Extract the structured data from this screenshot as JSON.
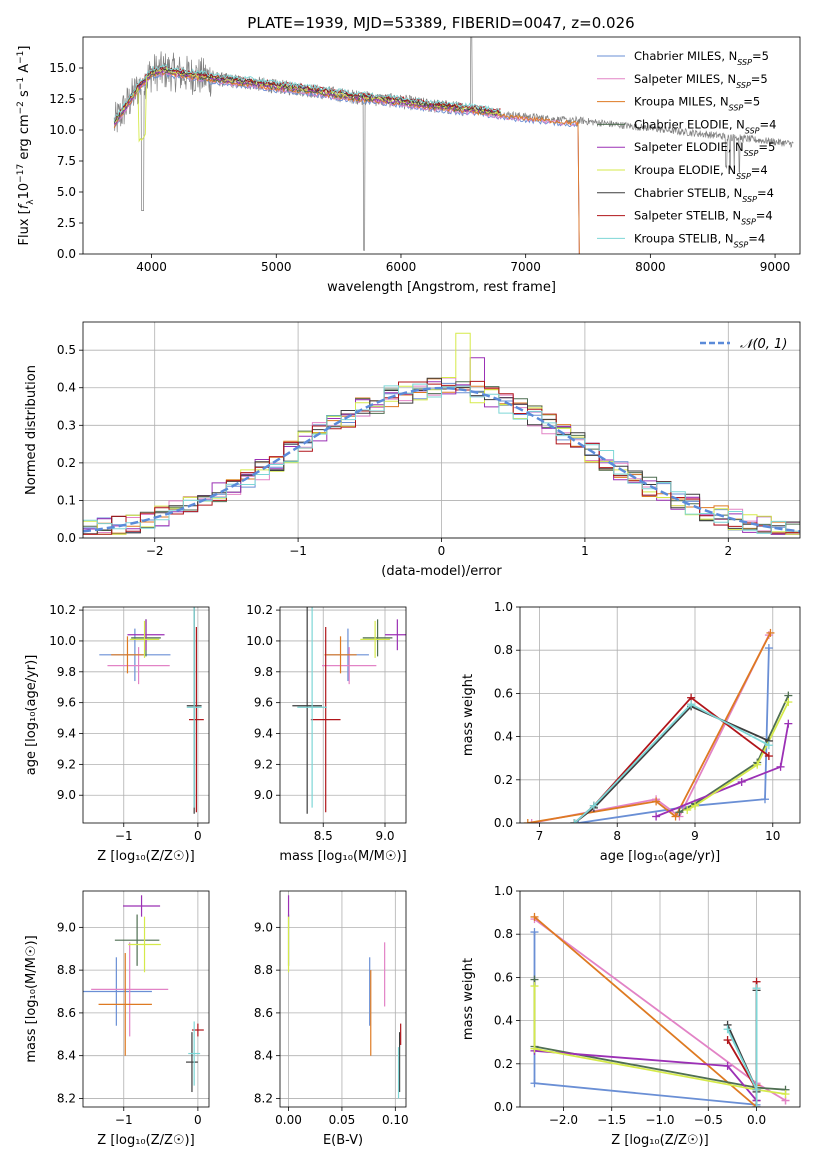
{
  "figure_title": "PLATE=1939, MJD=53389, FIBERID=0047, z=0.026",
  "colors": {
    "Chabrier MILES": "#6a8fd5",
    "Salpeter MILES": "#e283c6",
    "Kroupa MILES": "#de7a22",
    "Chabrier ELODIE": "#4f6f52",
    "Salpeter ELODIE": "#9b30b5",
    "Kroupa ELODIE": "#d5ea4a",
    "Chabrier STELIB": "#3d3d3d",
    "Salpeter STELIB": "#b0151a",
    "Kroupa STELIB": "#7dd6d6",
    "data": "#808080"
  },
  "chart_data": [
    {
      "id": "spectrum",
      "type": "line",
      "title": "PLATE=1939, MJD=53389, FIBERID=0047, z=0.026",
      "xlabel": "wavelength [Angstrom, rest frame]",
      "ylabel_parts": [
        "Flux [",
        "f",
        "λ",
        "10",
        "−17",
        " erg cm",
        "−2",
        " s",
        "−1",
        " A",
        "−1",
        "]"
      ],
      "xlim": [
        3450,
        9200
      ],
      "ylim": [
        0,
        17.5
      ],
      "xticks": [
        4000,
        5000,
        6000,
        7000,
        8000,
        9000
      ],
      "yticks": [
        0.0,
        2.5,
        5.0,
        7.5,
        10.0,
        12.5,
        15.0
      ],
      "ytick_labels": [
        "0.0",
        "2.5",
        "5.0",
        "7.5",
        "10.0",
        "12.5",
        "15.0"
      ],
      "grid": false,
      "legend_position": "upper-right",
      "legend": [
        {
          "label": "Chabrier MILES, N",
          "sub": "SSP",
          "suffix": "=5"
        },
        {
          "label": "Salpeter MILES, N",
          "sub": "SSP",
          "suffix": "=5"
        },
        {
          "label": "Kroupa MILES, N",
          "sub": "SSP",
          "suffix": "=5"
        },
        {
          "label": "Chabrier ELODIE, N",
          "sub": "SSP",
          "suffix": "=4"
        },
        {
          "label": "Salpeter ELODIE, N",
          "sub": "SSP",
          "suffix": "=5"
        },
        {
          "label": "Kroupa ELODIE, N",
          "sub": "SSP",
          "suffix": "=4"
        },
        {
          "label": "Chabrier STELIB, N",
          "sub": "SSP",
          "suffix": "=4"
        },
        {
          "label": "Salpeter STELIB, N",
          "sub": "SSP",
          "suffix": "=4"
        },
        {
          "label": "Kroupa STELIB, N",
          "sub": "SSP",
          "suffix": "=4"
        }
      ],
      "model_continuum": {
        "x": [
          3700,
          3800,
          3900,
          4000,
          4100,
          4200,
          4400,
          4600,
          4800,
          5000,
          5200,
          5400,
          5600,
          5800,
          6000,
          6200,
          6400,
          6600,
          6800,
          7000,
          7200,
          7400
        ],
        "y": [
          10.5,
          12.0,
          13.5,
          14.6,
          14.8,
          14.6,
          14.3,
          14.0,
          13.8,
          13.5,
          13.3,
          13.0,
          12.7,
          12.5,
          12.3,
          12.0,
          11.8,
          11.6,
          11.3,
          11.1,
          10.9,
          10.7
        ]
      }
    },
    {
      "id": "residuals",
      "type": "line",
      "xlabel": "(data-model)/error",
      "ylabel": "Normed distribution",
      "xlim": [
        -2.5,
        2.5
      ],
      "ylim": [
        0,
        0.575
      ],
      "xticks": [
        -2,
        -1,
        0,
        1,
        2
      ],
      "xtick_labels": [
        "−2",
        "−1",
        "0",
        "1",
        "2"
      ],
      "yticks": [
        0.0,
        0.1,
        0.2,
        0.3,
        0.4,
        0.5
      ],
      "ytick_labels": [
        "0.0",
        "0.1",
        "0.2",
        "0.3",
        "0.4",
        "0.5"
      ],
      "grid": true,
      "legend_position": "upper-right",
      "legend_label": "𝒩(0, 1)"
    },
    {
      "id": "age-vs-Z",
      "type": "scatter",
      "xlabel": "Z [log₁₀(Z/Z☉)]",
      "ylabel": "age  [log₁₀(age/yr)]",
      "xlim": [
        -1.55,
        0.15
      ],
      "ylim": [
        8.82,
        10.22
      ],
      "xticks": [
        -1,
        0
      ],
      "xtick_labels": [
        "−1",
        "0"
      ],
      "yticks": [
        9.0,
        9.2,
        9.4,
        9.6,
        9.8,
        10.0,
        10.2
      ],
      "ytick_labels": [
        "9.0",
        "9.2",
        "9.4",
        "9.6",
        "9.8",
        "10.0",
        "10.2"
      ],
      "grid": true,
      "points": [
        {
          "model": "Chabrier MILES",
          "x": -0.85,
          "y": 9.91,
          "xerr": 0.48,
          "yerr": 0.17
        },
        {
          "model": "Salpeter MILES",
          "x": -0.8,
          "y": 9.84,
          "xerr": 0.42,
          "yerr": 0.12
        },
        {
          "model": "Kroupa MILES",
          "x": -0.95,
          "y": 9.91,
          "xerr": 0.22,
          "yerr": 0.12
        },
        {
          "model": "Chabrier ELODIE",
          "x": -0.7,
          "y": 10.02,
          "xerr": 0.2,
          "yerr": 0.12
        },
        {
          "model": "Salpeter ELODIE",
          "x": -0.7,
          "y": 10.04,
          "xerr": 0.25,
          "yerr": 0.1
        },
        {
          "model": "Kroupa ELODIE",
          "x": -0.72,
          "y": 10.01,
          "xerr": 0.2,
          "yerr": 0.12
        },
        {
          "model": "Chabrier STELIB",
          "x": -0.05,
          "y": 9.58,
          "xerr": 0.1,
          "yerr": 0.7
        },
        {
          "model": "Salpeter STELIB",
          "x": -0.02,
          "y": 9.49,
          "xerr": 0.1,
          "yerr": 0.6
        },
        {
          "model": "Kroupa STELIB",
          "x": -0.05,
          "y": 9.57,
          "xerr": 0.1,
          "yerr": 0.65
        }
      ]
    },
    {
      "id": "age-vs-mass",
      "type": "scatter",
      "xlabel": "mass [log₁₀(M/M☉)]",
      "ylabel": "",
      "xlim": [
        8.15,
        9.17
      ],
      "ylim": [
        8.82,
        10.22
      ],
      "xticks": [
        8.5,
        9.0
      ],
      "xtick_labels": [
        "8.5",
        "9.0"
      ],
      "yticks": [
        9.0,
        9.2,
        9.4,
        9.6,
        9.8,
        10.0,
        10.2
      ],
      "ytick_labels": [
        "9.0",
        "9.2",
        "9.4",
        "9.6",
        "9.8",
        "10.0",
        "10.2"
      ],
      "grid": true,
      "points": [
        {
          "model": "Chabrier MILES",
          "x": 8.7,
          "y": 9.91,
          "xerr": 0.17,
          "yerr": 0.17
        },
        {
          "model": "Salpeter MILES",
          "x": 8.71,
          "y": 9.84,
          "xerr": 0.22,
          "yerr": 0.12
        },
        {
          "model": "Kroupa MILES",
          "x": 8.64,
          "y": 9.91,
          "xerr": 0.13,
          "yerr": 0.12
        },
        {
          "model": "Chabrier ELODIE",
          "x": 8.94,
          "y": 10.02,
          "xerr": 0.12,
          "yerr": 0.12
        },
        {
          "model": "Salpeter ELODIE",
          "x": 9.1,
          "y": 10.04,
          "xerr": 0.1,
          "yerr": 0.1
        },
        {
          "model": "Kroupa ELODIE",
          "x": 8.92,
          "y": 10.01,
          "xerr": 0.12,
          "yerr": 0.12
        },
        {
          "model": "Chabrier STELIB",
          "x": 8.37,
          "y": 9.58,
          "xerr": 0.12,
          "yerr": 0.7
        },
        {
          "model": "Salpeter STELIB",
          "x": 8.52,
          "y": 9.49,
          "xerr": 0.12,
          "yerr": 0.6
        },
        {
          "model": "Kroupa STELIB",
          "x": 8.41,
          "y": 9.57,
          "xerr": 0.12,
          "yerr": 0.65
        }
      ]
    },
    {
      "id": "weight-vs-age",
      "type": "line",
      "xlabel": "age  [log₁₀(age/yr)]",
      "ylabel": "mass weight",
      "xlim": [
        6.75,
        10.35
      ],
      "ylim": [
        0,
        1.0
      ],
      "xticks": [
        7,
        8,
        9,
        10
      ],
      "xtick_labels": [
        "7",
        "8",
        "9",
        "10"
      ],
      "yticks": [
        0.0,
        0.2,
        0.4,
        0.6,
        0.8,
        1.0
      ],
      "ytick_labels": [
        "0.0",
        "0.2",
        "0.4",
        "0.6",
        "0.8",
        "1.0"
      ],
      "grid": true,
      "series": [
        {
          "model": "Chabrier MILES",
          "x": [
            7.5,
            9.0,
            9.9,
            9.95
          ],
          "y": [
            0.0,
            0.08,
            0.11,
            0.81
          ]
        },
        {
          "model": "Salpeter MILES",
          "x": [
            6.9,
            8.5,
            8.8,
            9.95
          ],
          "y": [
            0.0,
            0.11,
            0.03,
            0.87
          ]
        },
        {
          "model": "Kroupa MILES",
          "x": [
            6.85,
            8.5,
            8.75,
            9.97
          ],
          "y": [
            0.0,
            0.1,
            0.03,
            0.88
          ]
        },
        {
          "model": "Chabrier ELODIE",
          "x": [
            8.8,
            9.0,
            9.8,
            10.2
          ],
          "y": [
            0.05,
            0.09,
            0.28,
            0.59
          ]
        },
        {
          "model": "Salpeter ELODIE",
          "x": [
            8.5,
            9.6,
            10.1,
            10.2
          ],
          "y": [
            0.03,
            0.19,
            0.26,
            0.46
          ]
        },
        {
          "model": "Kroupa ELODIE",
          "x": [
            8.9,
            9.0,
            9.8,
            10.2
          ],
          "y": [
            0.06,
            0.08,
            0.27,
            0.56
          ]
        },
        {
          "model": "Chabrier STELIB",
          "x": [
            7.45,
            7.7,
            8.95,
            9.95
          ],
          "y": [
            0.0,
            0.07,
            0.54,
            0.38
          ]
        },
        {
          "model": "Salpeter STELIB",
          "x": [
            7.45,
            7.7,
            8.95,
            9.95
          ],
          "y": [
            0.0,
            0.08,
            0.58,
            0.31
          ]
        },
        {
          "model": "Kroupa STELIB",
          "x": [
            7.45,
            7.7,
            8.95,
            9.95
          ],
          "y": [
            0.0,
            0.08,
            0.55,
            0.36
          ]
        }
      ]
    },
    {
      "id": "mass-vs-Z",
      "type": "scatter",
      "xlabel": "Z [log₁₀(Z/Z☉)]",
      "ylabel": "mass [log₁₀(M/M☉)]",
      "xlim": [
        -1.55,
        0.15
      ],
      "ylim": [
        8.16,
        9.17
      ],
      "xticks": [
        -1,
        0
      ],
      "xtick_labels": [
        "−1",
        "0"
      ],
      "yticks": [
        8.2,
        8.4,
        8.6,
        8.8,
        9.0
      ],
      "ytick_labels": [
        "8.2",
        "8.4",
        "8.6",
        "8.8",
        "9.0"
      ],
      "grid": true,
      "points": [
        {
          "model": "Chabrier MILES",
          "x": -1.1,
          "y": 8.7,
          "xerr": 0.48,
          "yerr": 0.16
        },
        {
          "model": "Salpeter MILES",
          "x": -0.92,
          "y": 8.71,
          "xerr": 0.52,
          "yerr": 0.22
        },
        {
          "model": "Kroupa MILES",
          "x": -0.98,
          "y": 8.64,
          "xerr": 0.36,
          "yerr": 0.24
        },
        {
          "model": "Chabrier ELODIE",
          "x": -0.82,
          "y": 8.94,
          "xerr": 0.3,
          "yerr": 0.12
        },
        {
          "model": "Salpeter ELODIE",
          "x": -0.76,
          "y": 9.1,
          "xerr": 0.25,
          "yerr": 0.05
        },
        {
          "model": "Kroupa ELODIE",
          "x": -0.72,
          "y": 8.92,
          "xerr": 0.22,
          "yerr": 0.13
        },
        {
          "model": "Chabrier STELIB",
          "x": -0.08,
          "y": 8.37,
          "xerr": 0.08,
          "yerr": 0.14
        },
        {
          "model": "Salpeter STELIB",
          "x": 0.0,
          "y": 8.52,
          "xerr": 0.08,
          "yerr": 0.03
        },
        {
          "model": "Kroupa STELIB",
          "x": -0.05,
          "y": 8.41,
          "xerr": 0.08,
          "yerr": 0.15
        }
      ]
    },
    {
      "id": "mass-vs-ebv",
      "type": "scatter",
      "xlabel": "E(B-V)",
      "ylabel": "",
      "xlim": [
        -0.008,
        0.11
      ],
      "ylim": [
        8.16,
        9.17
      ],
      "xticks": [
        0.0,
        0.05,
        0.1
      ],
      "xtick_labels": [
        "0.00",
        "0.05",
        "0.10"
      ],
      "yticks": [
        8.2,
        8.4,
        8.6,
        8.8,
        9.0
      ],
      "ytick_labels": [
        "8.2",
        "8.4",
        "8.6",
        "8.8",
        "9.0"
      ],
      "grid": true,
      "points": [
        {
          "model": "Chabrier MILES",
          "x": 0.076,
          "y": 8.7,
          "yerr": 0.16
        },
        {
          "model": "Salpeter MILES",
          "x": 0.09,
          "y": 8.78,
          "yerr": 0.15
        },
        {
          "model": "Kroupa MILES",
          "x": 0.077,
          "y": 8.6,
          "yerr": 0.2
        },
        {
          "model": "Chabrier ELODIE",
          "x": 0.0,
          "y": 8.94,
          "yerr": 0.12
        },
        {
          "model": "Salpeter ELODIE",
          "x": 0.0,
          "y": 9.1,
          "yerr": 0.05
        },
        {
          "model": "Kroupa ELODIE",
          "x": 0.0,
          "y": 8.92,
          "yerr": 0.13
        },
        {
          "model": "Chabrier STELIB",
          "x": 0.104,
          "y": 8.37,
          "yerr": 0.14
        },
        {
          "model": "Salpeter STELIB",
          "x": 0.105,
          "y": 8.5,
          "yerr": 0.05
        },
        {
          "model": "Kroupa STELIB",
          "x": 0.103,
          "y": 8.32,
          "yerr": 0.12
        }
      ]
    },
    {
      "id": "weight-vs-Z",
      "type": "line",
      "xlabel": "Z [log₁₀(Z/Z☉)]",
      "ylabel": "mass weight",
      "xlim": [
        -2.45,
        0.45
      ],
      "ylim": [
        0,
        1.0
      ],
      "xticks": [
        -2.0,
        -1.5,
        -1.0,
        -0.5,
        0.0
      ],
      "xtick_labels": [
        "−2.0",
        "−1.5",
        "−1.0",
        "−0.5",
        "0.0"
      ],
      "yticks": [
        0.0,
        0.2,
        0.4,
        0.6,
        0.8,
        1.0
      ],
      "ytick_labels": [
        "0.0",
        "0.2",
        "0.4",
        "0.6",
        "0.8",
        "1.0"
      ],
      "grid": true,
      "series": [
        {
          "model": "Chabrier MILES",
          "x": [
            -2.3,
            -2.3,
            0.0,
            0.0
          ],
          "y": [
            0.81,
            0.11,
            0.01,
            0.08
          ]
        },
        {
          "model": "Salpeter MILES",
          "x": [
            -2.3,
            0.0,
            0.3,
            0.3
          ],
          "y": [
            0.87,
            0.11,
            0.03,
            0.03
          ]
        },
        {
          "model": "Kroupa MILES",
          "x": [
            -2.3,
            0.0,
            0.0,
            0.0
          ],
          "y": [
            0.88,
            0.0,
            0.03,
            0.1
          ]
        },
        {
          "model": "Chabrier ELODIE",
          "x": [
            -2.3,
            -2.3,
            0.0,
            0.3
          ],
          "y": [
            0.59,
            0.28,
            0.09,
            0.08
          ]
        },
        {
          "model": "Salpeter ELODIE",
          "x": [
            -2.3,
            -0.3,
            0.0,
            0.0
          ],
          "y": [
            0.26,
            0.19,
            0.03,
            0.03
          ]
        },
        {
          "model": "Kroupa ELODIE",
          "x": [
            -2.3,
            -2.3,
            0.0,
            0.3
          ],
          "y": [
            0.56,
            0.27,
            0.08,
            0.06
          ]
        },
        {
          "model": "Chabrier STELIB",
          "x": [
            -0.3,
            0.0,
            0.0,
            0.0
          ],
          "y": [
            0.38,
            0.08,
            0.07,
            0.54
          ]
        },
        {
          "model": "Salpeter STELIB",
          "x": [
            -0.3,
            0.0,
            0.0,
            0.0
          ],
          "y": [
            0.31,
            0.08,
            0.0,
            0.58
          ]
        },
        {
          "model": "Kroupa STELIB",
          "x": [
            -0.3,
            0.0,
            0.0,
            0.0
          ],
          "y": [
            0.36,
            0.08,
            0.0,
            0.55
          ]
        }
      ]
    }
  ]
}
